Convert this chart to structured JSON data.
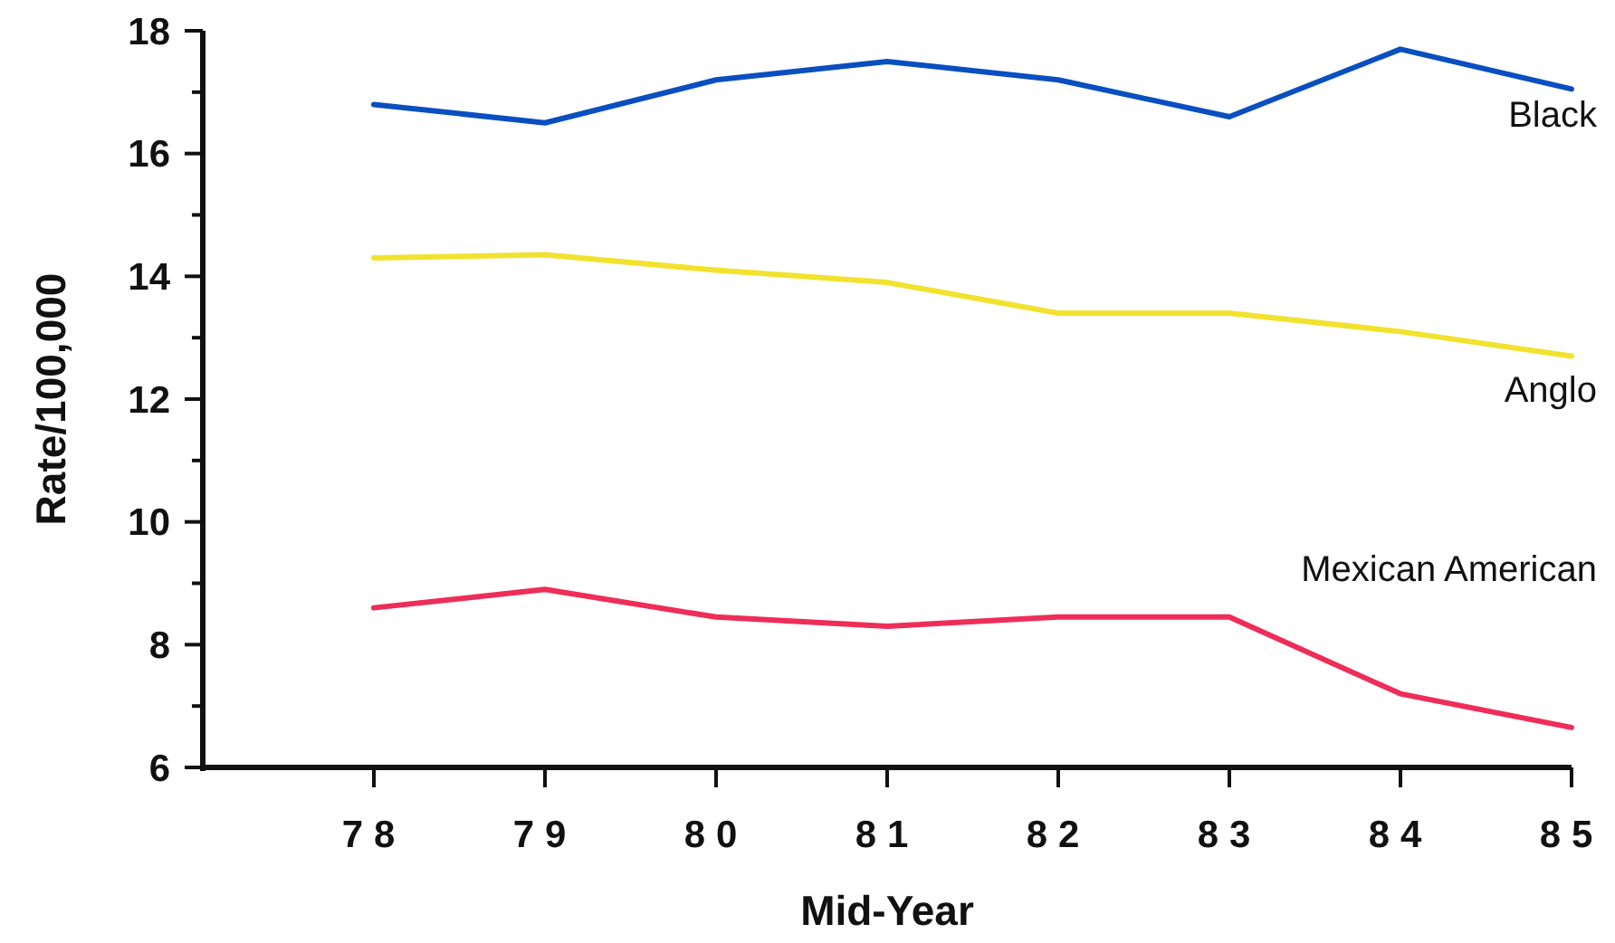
{
  "chart_data": {
    "type": "line",
    "xlabel": "Mid-Year",
    "ylabel": "Rate/100,000",
    "x": [
      78,
      79,
      80,
      81,
      82,
      83,
      84,
      85
    ],
    "xlim": [
      77,
      85
    ],
    "xticks": [
      78,
      79,
      80,
      81,
      82,
      83,
      84,
      85
    ],
    "ylim": [
      6,
      18
    ],
    "yticks": [
      6,
      {
        "value": 7,
        "label": null
      },
      8,
      {
        "value": 9,
        "label": null
      },
      10,
      {
        "value": 11,
        "label": null
      },
      12,
      {
        "value": 13,
        "label": null
      },
      14,
      {
        "value": 15,
        "label": null
      },
      16,
      {
        "value": 17,
        "label": null
      },
      18
    ],
    "series": [
      {
        "name": "Black",
        "color": "#0a4fc0",
        "values": [
          16.8,
          16.5,
          17.2,
          17.5,
          17.2,
          16.6,
          17.7,
          17.05
        ]
      },
      {
        "name": "Anglo",
        "color": "#f2e22e",
        "values": [
          14.3,
          14.35,
          14.1,
          13.9,
          13.4,
          13.4,
          13.1,
          12.7
        ]
      },
      {
        "name": "Mexican American",
        "color": "#ee2d58",
        "values": [
          8.6,
          8.9,
          8.45,
          8.3,
          8.45,
          8.45,
          7.2,
          6.65
        ]
      }
    ]
  }
}
